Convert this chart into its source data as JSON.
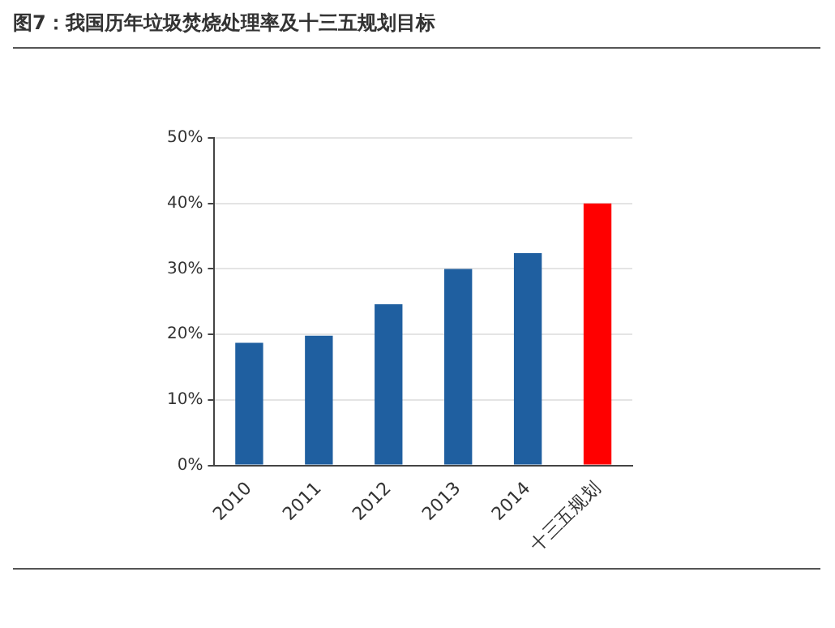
{
  "chart_data": {
    "type": "bar",
    "title": "图7：我国历年垃圾焚烧处理率及十三五规划目标",
    "categories": [
      "2010",
      "2011",
      "2012",
      "2013",
      "2014",
      "十三五规划"
    ],
    "values": [
      18.7,
      19.8,
      24.6,
      30,
      32.4,
      40
    ],
    "colors": [
      "#1f5fa0",
      "#1f5fa0",
      "#1f5fa0",
      "#1f5fa0",
      "#1f5fa0",
      "#ff0000"
    ],
    "ylim": [
      0,
      50
    ],
    "yticks": [
      {
        "value": 0,
        "label": "0%"
      },
      {
        "value": 10,
        "label": "10%"
      },
      {
        "value": 20,
        "label": "20%"
      },
      {
        "value": 30,
        "label": "30%"
      },
      {
        "value": 40,
        "label": "40%"
      },
      {
        "value": 50,
        "label": "50%"
      }
    ],
    "grid": "y"
  }
}
